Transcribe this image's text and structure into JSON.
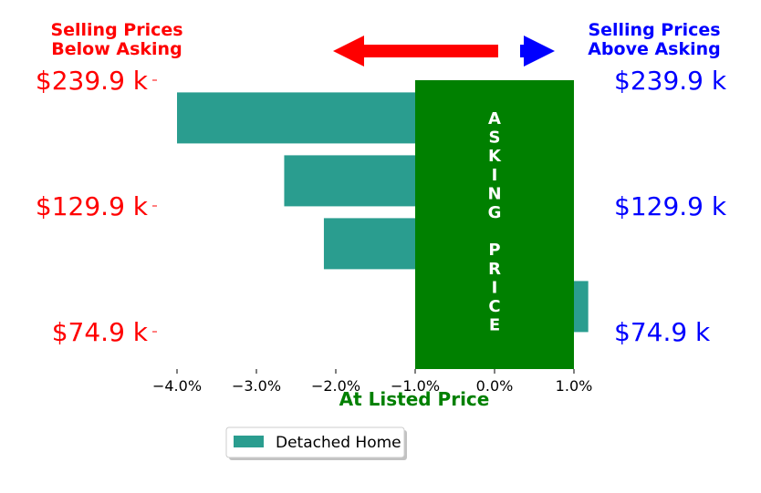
{
  "header": {
    "below_line1": "Selling Prices",
    "below_line2": "Below Asking",
    "above_line1": "Selling Prices",
    "above_line2": "Above Asking",
    "below_color": "#ff0000",
    "above_color": "#0000ff"
  },
  "asking_block": {
    "letters": [
      "A",
      "S",
      "K",
      "I",
      "N",
      "G",
      "",
      "P",
      "R",
      "I",
      "C",
      "E"
    ],
    "color": "#008000"
  },
  "xlabel_color": "#008000",
  "chart_data": {
    "type": "bar",
    "orientation": "horizontal",
    "xlabel": "At Listed Price",
    "xlim": [
      -4.0,
      1.0
    ],
    "xticks": [
      -4.0,
      -3.0,
      -2.0,
      -1.0,
      0.0,
      1.0
    ],
    "xtick_labels": [
      "−4.0%",
      "−3.0%",
      "−2.0%",
      "−1.0%",
      "0.0%",
      "1.0%"
    ],
    "y_ticks": [
      {
        "pos": 0,
        "left_label": "$239.9 k",
        "right_label": "$239.9 k"
      },
      {
        "pos": 2,
        "left_label": "$129.9 k",
        "right_label": "$129.9 k"
      },
      {
        "pos": 4,
        "left_label": "$74.9 k",
        "right_label": "$74.9 k"
      }
    ],
    "series": [
      {
        "name": "Detached Home",
        "color": "#2a9d8f",
        "rows": [
          0.6,
          1.6,
          2.6,
          3.6
        ],
        "values": [
          -4.0,
          -2.65,
          -2.15,
          1.18
        ]
      }
    ],
    "asking_band": {
      "x_from": -1.0,
      "x_to": 1.0
    },
    "legend": "lower-center",
    "grid": false
  }
}
